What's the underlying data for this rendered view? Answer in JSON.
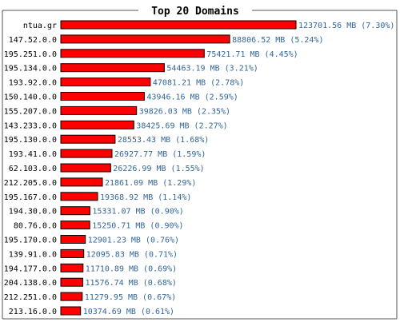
{
  "chart_data": {
    "type": "bar",
    "orientation": "horizontal",
    "title": "Top 20 Domains",
    "unit": "MB",
    "bar_color": "#ff0000",
    "label_color": "#336699",
    "categories": [
      "ntua.gr",
      "147.52.0.0",
      "195.251.0.0",
      "195.134.0.0",
      "193.92.0.0",
      "150.140.0.0",
      "155.207.0.0",
      "143.233.0.0",
      "195.130.0.0",
      "193.41.0.0",
      "62.103.0.0",
      "212.205.0.0",
      "195.167.0.0",
      "194.30.0.0",
      "80.76.0.0",
      "195.170.0.0",
      "139.91.0.0",
      "194.177.0.0",
      "204.138.0.0",
      "212.251.0.0",
      "213.16.0.0"
    ],
    "values": [
      123701.56,
      88806.52,
      75421.71,
      54463.19,
      47081.21,
      43946.16,
      39826.03,
      38425.69,
      28553.43,
      26927.77,
      26226.99,
      21861.09,
      19368.92,
      15331.07,
      15250.71,
      12901.23,
      12095.83,
      11710.89,
      11576.74,
      11279.95,
      10374.69
    ],
    "value_labels": [
      "123701.56 MB (7.30%)",
      "88806.52 MB (5.24%)",
      "75421.71 MB (4.45%)",
      "54463.19 MB (3.21%)",
      "47081.21 MB (2.78%)",
      "43946.16 MB (2.59%)",
      "39826.03 MB (2.35%)",
      "38425.69 MB (2.27%)",
      "28553.43 MB (1.68%)",
      "26927.77 MB (1.59%)",
      "26226.99 MB (1.55%)",
      "21861.09 MB (1.29%)",
      "19368.92 MB (1.14%)",
      "15331.07 MB (0.90%)",
      "15250.71 MB (0.90%)",
      "12901.23 MB (0.76%)",
      "12095.83 MB (0.71%)",
      "11710.89 MB (0.69%)",
      "11576.74 MB (0.68%)",
      "11279.95 MB (0.67%)",
      "10374.69 MB (0.61%)"
    ]
  }
}
